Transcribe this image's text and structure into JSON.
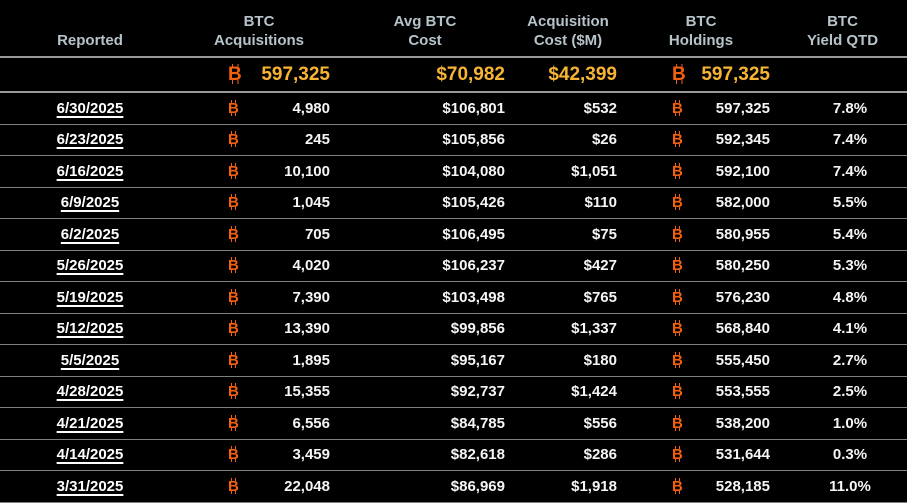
{
  "colors": {
    "background": "#000000",
    "btc_orange": "#f2600f",
    "summary_gold": "#f8b434",
    "header_text": "#b6c4ca",
    "row_text": "#f5f5f5",
    "divider_strong": "#97999b",
    "divider_row": "#7e8183"
  },
  "chart_data": {
    "type": "table",
    "btc_symbol": "B",
    "columns": [
      "Reported",
      "BTC Acquisitions",
      "Avg BTC Cost",
      "Acquisition Cost ($M)",
      "BTC Holdings",
      "BTC Yield QTD"
    ],
    "headers": {
      "reported": "Reported",
      "btc_acquisitions": "BTC\nAcquisitions",
      "avg_btc_cost": "Avg BTC\nCost",
      "acquisition_cost": "Acquisition\nCost ($M)",
      "btc_holdings": "BTC\nHoldings",
      "btc_yield_qtd": "BTC\nYield QTD"
    },
    "summary": {
      "btc_acquisitions": "597,325",
      "avg_btc_cost": "$70,982",
      "acquisition_cost": "$42,399",
      "btc_holdings": "597,325",
      "btc_yield_qtd": ""
    },
    "rows": [
      {
        "reported": "6/30/2025",
        "btc_acquisitions": "4,980",
        "avg_btc_cost": "$106,801",
        "acquisition_cost": "$532",
        "btc_holdings": "597,325",
        "btc_yield_qtd": "7.8%"
      },
      {
        "reported": "6/23/2025",
        "btc_acquisitions": "245",
        "avg_btc_cost": "$105,856",
        "acquisition_cost": "$26",
        "btc_holdings": "592,345",
        "btc_yield_qtd": "7.4%"
      },
      {
        "reported": "6/16/2025",
        "btc_acquisitions": "10,100",
        "avg_btc_cost": "$104,080",
        "acquisition_cost": "$1,051",
        "btc_holdings": "592,100",
        "btc_yield_qtd": "7.4%"
      },
      {
        "reported": "6/9/2025",
        "btc_acquisitions": "1,045",
        "avg_btc_cost": "$105,426",
        "acquisition_cost": "$110",
        "btc_holdings": "582,000",
        "btc_yield_qtd": "5.5%"
      },
      {
        "reported": "6/2/2025",
        "btc_acquisitions": "705",
        "avg_btc_cost": "$106,495",
        "acquisition_cost": "$75",
        "btc_holdings": "580,955",
        "btc_yield_qtd": "5.4%"
      },
      {
        "reported": "5/26/2025",
        "btc_acquisitions": "4,020",
        "avg_btc_cost": "$106,237",
        "acquisition_cost": "$427",
        "btc_holdings": "580,250",
        "btc_yield_qtd": "5.3%"
      },
      {
        "reported": "5/19/2025",
        "btc_acquisitions": "7,390",
        "avg_btc_cost": "$103,498",
        "acquisition_cost": "$765",
        "btc_holdings": "576,230",
        "btc_yield_qtd": "4.8%"
      },
      {
        "reported": "5/12/2025",
        "btc_acquisitions": "13,390",
        "avg_btc_cost": "$99,856",
        "acquisition_cost": "$1,337",
        "btc_holdings": "568,840",
        "btc_yield_qtd": "4.1%"
      },
      {
        "reported": "5/5/2025",
        "btc_acquisitions": "1,895",
        "avg_btc_cost": "$95,167",
        "acquisition_cost": "$180",
        "btc_holdings": "555,450",
        "btc_yield_qtd": "2.7%"
      },
      {
        "reported": "4/28/2025",
        "btc_acquisitions": "15,355",
        "avg_btc_cost": "$92,737",
        "acquisition_cost": "$1,424",
        "btc_holdings": "553,555",
        "btc_yield_qtd": "2.5%"
      },
      {
        "reported": "4/21/2025",
        "btc_acquisitions": "6,556",
        "avg_btc_cost": "$84,785",
        "acquisition_cost": "$556",
        "btc_holdings": "538,200",
        "btc_yield_qtd": "1.0%"
      },
      {
        "reported": "4/14/2025",
        "btc_acquisitions": "3,459",
        "avg_btc_cost": "$82,618",
        "acquisition_cost": "$286",
        "btc_holdings": "531,644",
        "btc_yield_qtd": "0.3%"
      },
      {
        "reported": "3/31/2025",
        "btc_acquisitions": "22,048",
        "avg_btc_cost": "$86,969",
        "acquisition_cost": "$1,918",
        "btc_holdings": "528,185",
        "btc_yield_qtd": "11.0%"
      }
    ]
  }
}
